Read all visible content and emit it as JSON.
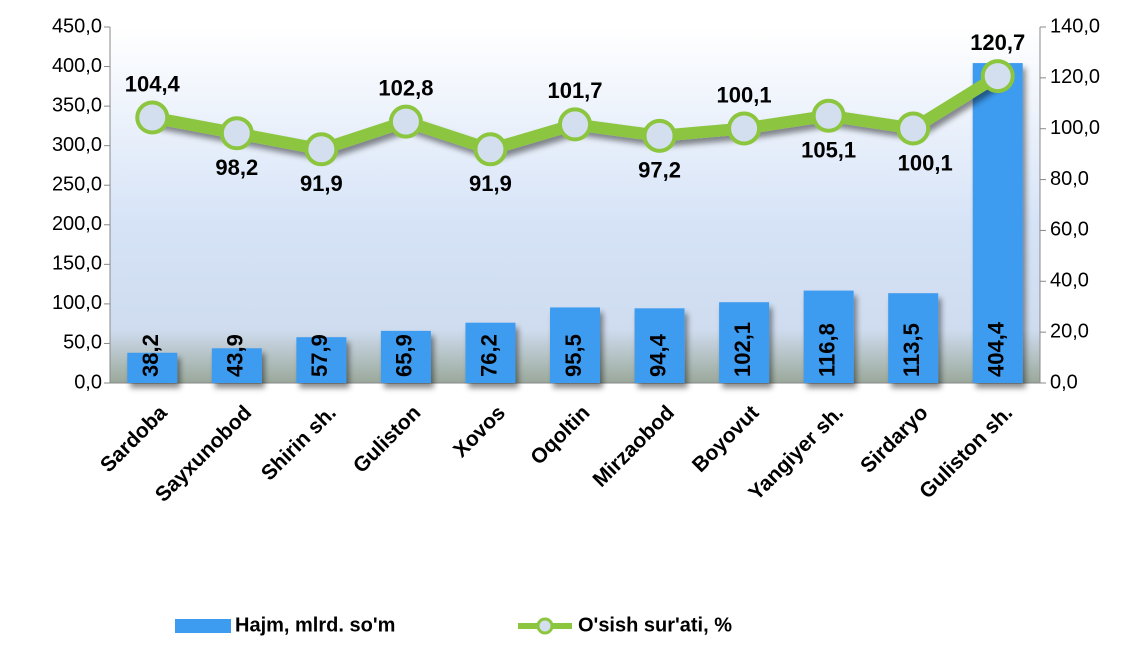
{
  "chart_data": {
    "type": "bar+line",
    "categories": [
      "Sardoba",
      "Sayxunobod",
      "Shirin sh.",
      "Guliston",
      "Xovos",
      "Oqoltin",
      "Mirzaobod",
      "Boyovut",
      "Yangiyer sh.",
      "Sirdaryo",
      "Guliston sh."
    ],
    "series": [
      {
        "name": "Hajm, mlrd. so'm",
        "type": "bar",
        "color": "#3d9bf0",
        "values": [
          38.2,
          43.9,
          57.9,
          65.9,
          76.2,
          95.5,
          94.4,
          102.1,
          116.8,
          113.5,
          404.4
        ],
        "value_labels": [
          "38,2",
          "43,9",
          "57,9",
          "65,9",
          "76,2",
          "95,5",
          "94,4",
          "102,1",
          "116,8",
          "113,5",
          "404,4"
        ]
      },
      {
        "name": "O'sish sur'ati, %",
        "type": "line",
        "axis": "y2",
        "color": "#8cc63f",
        "values": [
          104.4,
          98.2,
          91.9,
          102.8,
          91.9,
          101.7,
          97.2,
          100.1,
          105.1,
          100.1,
          120.7
        ],
        "value_labels": [
          "104,4",
          "98,2",
          "91,9",
          "102,8",
          "91,9",
          "101,7",
          "97,2",
          "100,1",
          "105,1",
          "100,1",
          "120,7"
        ]
      }
    ],
    "ylim": [
      0,
      450
    ],
    "yticks": [
      {
        "value": 0,
        "label": "0,0"
      },
      {
        "value": 50,
        "label": "50,0"
      },
      {
        "value": 100,
        "label": "100,0"
      },
      {
        "value": 150,
        "label": "150,0"
      },
      {
        "value": 200,
        "label": "200,0"
      },
      {
        "value": 250,
        "label": "250,0"
      },
      {
        "value": 300,
        "label": "300,0"
      },
      {
        "value": 350,
        "label": "350,0"
      },
      {
        "value": 400,
        "label": "400,0"
      },
      {
        "value": 450,
        "label": "450,0"
      }
    ],
    "y2lim": [
      0,
      140
    ],
    "y2ticks": [
      {
        "value": 0,
        "label": "0,0"
      },
      {
        "value": 20,
        "label": "20,0"
      },
      {
        "value": 40,
        "label": "40,0"
      },
      {
        "value": 60,
        "label": "60,0"
      },
      {
        "value": 80,
        "label": "80,0"
      },
      {
        "value": 100,
        "label": "100,0"
      },
      {
        "value": 120,
        "label": "120,0"
      },
      {
        "value": 140,
        "label": "140,0"
      }
    ],
    "legend": "bottom"
  }
}
